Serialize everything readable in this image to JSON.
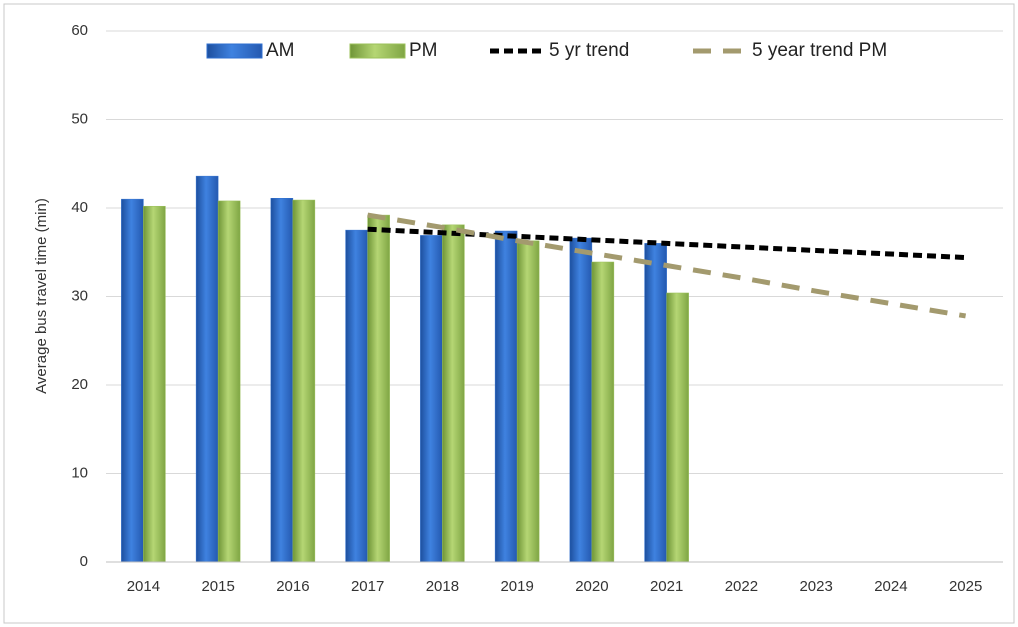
{
  "chart_data": {
    "type": "bar",
    "ylabel": "Average bus travel time (min)",
    "categories": [
      "2014",
      "2015",
      "2016",
      "2017",
      "2018",
      "2019",
      "2020",
      "2021",
      "2022",
      "2023",
      "2024",
      "2025"
    ],
    "series": [
      {
        "name": "AM",
        "type": "bar",
        "color": "#2f6fcf",
        "values": [
          41.0,
          43.6,
          41.1,
          37.5,
          36.9,
          37.4,
          36.6,
          36.0,
          null,
          null,
          null,
          null
        ]
      },
      {
        "name": "PM",
        "type": "bar",
        "color": "#9bc05a",
        "values": [
          40.2,
          40.8,
          40.9,
          39.2,
          38.1,
          36.3,
          33.9,
          30.4,
          null,
          null,
          null,
          null
        ]
      },
      {
        "name": "5 yr trend",
        "type": "line",
        "color": "#000000",
        "values": [
          null,
          null,
          null,
          37.6,
          37.2,
          36.8,
          36.4,
          36.0,
          35.6,
          35.2,
          34.8,
          34.4
        ]
      },
      {
        "name": "5 year trend PM",
        "type": "line",
        "color": "#a39a6e",
        "values": [
          null,
          null,
          null,
          39.2,
          37.8,
          36.3,
          34.9,
          33.5,
          32.1,
          30.6,
          29.2,
          27.8
        ]
      }
    ],
    "ylim": [
      0,
      60
    ],
    "yticks": [
      0,
      10,
      20,
      30,
      40,
      50,
      60
    ],
    "grid": true,
    "legend": "top"
  }
}
